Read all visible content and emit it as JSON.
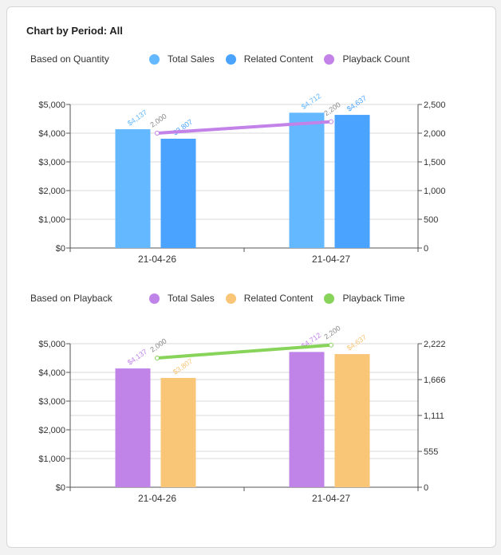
{
  "card": {
    "title": "Chart by Period: All"
  },
  "chart_data": [
    {
      "type": "bar",
      "label": "Based on Quantity",
      "categories": [
        "21-04-26",
        "21-04-27"
      ],
      "series": [
        {
          "name": "Total Sales",
          "color": "#63b8ff",
          "values": [
            4137,
            4712
          ],
          "value_labels": [
            "$4,137",
            "$4,712"
          ]
        },
        {
          "name": "Related Content",
          "color": "#4aa3ff",
          "values": [
            3807,
            4637
          ],
          "value_labels": [
            "$3,807",
            "$4,637"
          ]
        }
      ],
      "line": {
        "name": "Playback Count",
        "color": "#c282e8",
        "values": [
          2000,
          2200
        ],
        "value_labels": [
          "2,000",
          "2,200"
        ]
      },
      "y_left": {
        "min": 0,
        "max": 5000,
        "ticks": [
          0,
          1000,
          2000,
          3000,
          4000,
          5000
        ],
        "tick_labels": [
          "$0",
          "$1,000",
          "$2,000",
          "$3,000",
          "$4,000",
          "$5,000"
        ]
      },
      "y_right": {
        "min": 0,
        "max": 2500,
        "ticks": [
          0,
          500,
          1000,
          1500,
          2000,
          2500
        ],
        "tick_labels": [
          "0",
          "500",
          "1,000",
          "1,500",
          "2,000",
          "2,500"
        ]
      },
      "legend_position": "top"
    },
    {
      "type": "bar",
      "label": "Based on Playback",
      "categories": [
        "21-04-26",
        "21-04-27"
      ],
      "series": [
        {
          "name": "Total Sales",
          "color": "#c083e8",
          "values": [
            4137,
            4712
          ],
          "value_labels": [
            "$4,137",
            "$4,712"
          ]
        },
        {
          "name": "Related Content",
          "color": "#f9c577",
          "values": [
            3807,
            4637
          ],
          "value_labels": [
            "$3,807",
            "$4,637"
          ]
        }
      ],
      "line": {
        "name": "Playback Time",
        "color": "#88d35a",
        "values": [
          2000,
          2200
        ],
        "value_labels": [
          "2,000",
          "2,200"
        ]
      },
      "y_left": {
        "min": 0,
        "max": 5000,
        "ticks": [
          0,
          1000,
          2000,
          3000,
          4000,
          5000
        ],
        "tick_labels": [
          "$0",
          "$1,000",
          "$2,000",
          "$3,000",
          "$4,000",
          "$5,000"
        ]
      },
      "y_right": {
        "min": 0,
        "max": 2222,
        "ticks": [
          0,
          555,
          1111,
          1666,
          2222
        ],
        "tick_labels": [
          "0",
          "555",
          "1,111",
          "1,666",
          "2,222"
        ]
      },
      "legend_position": "top"
    }
  ]
}
